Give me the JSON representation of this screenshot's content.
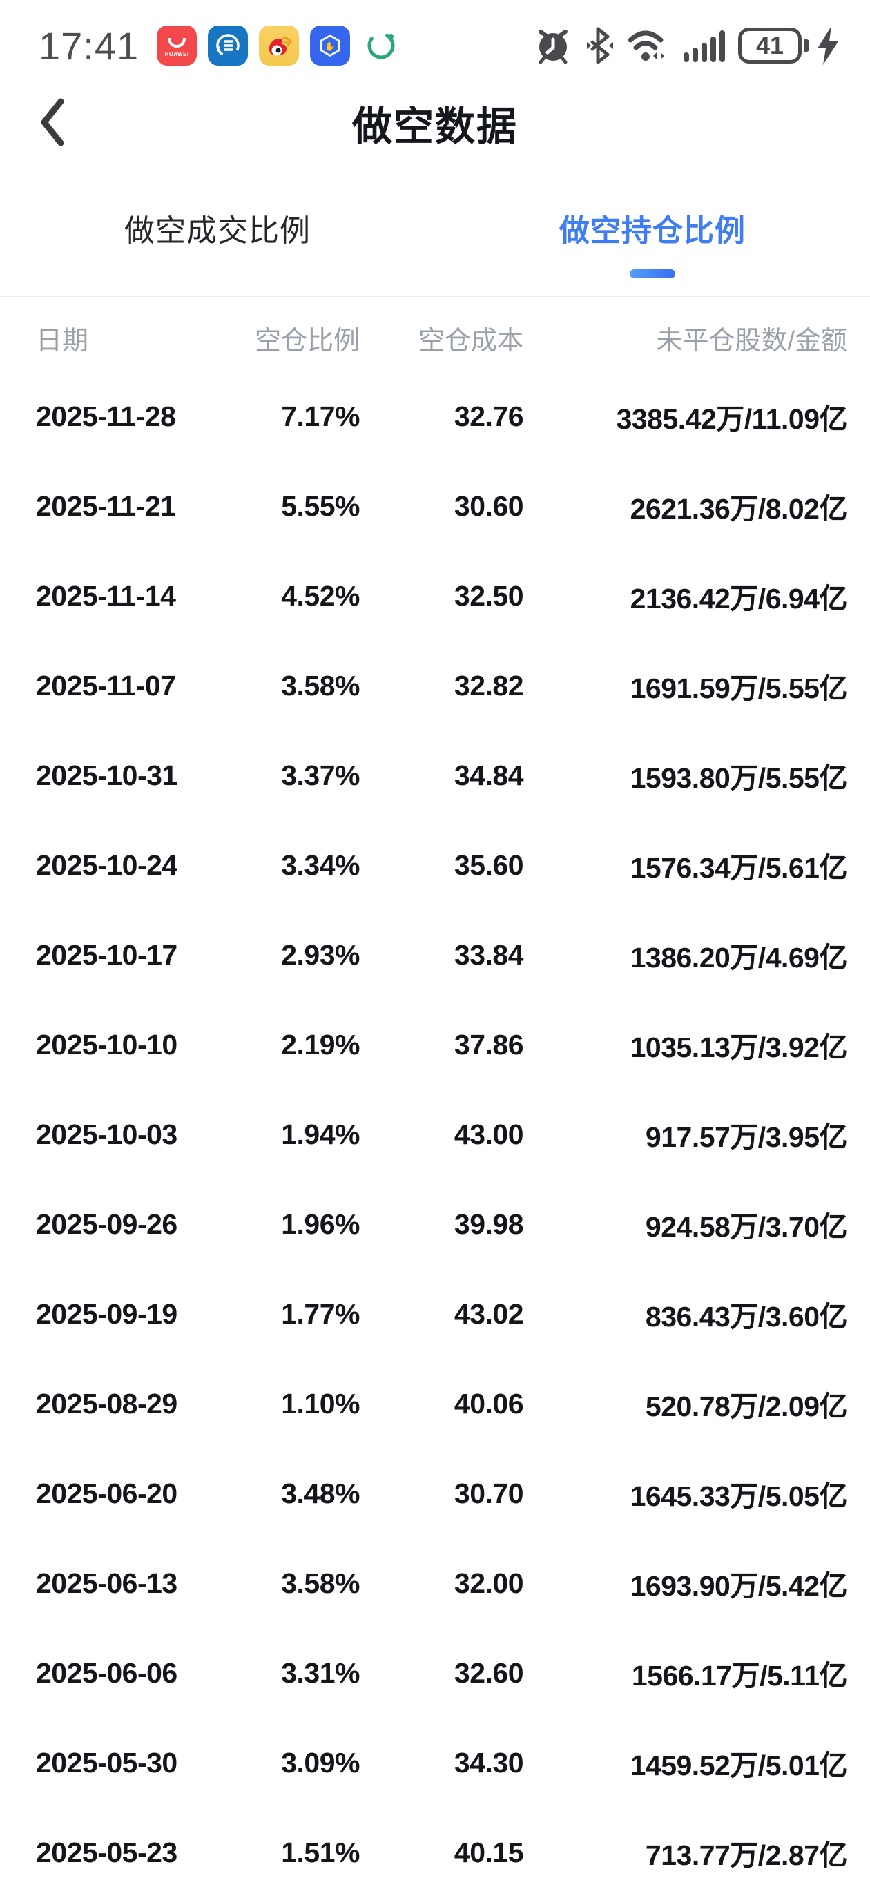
{
  "status_bar": {
    "time": "17:41",
    "battery_level": "41",
    "app_icon_names": [
      "huawei-appgallery",
      "reader-sync-app",
      "weibo",
      "hand-hexagon-app",
      "sync-indicator"
    ],
    "right_icon_names": [
      "alarm",
      "bluetooth",
      "wifi",
      "signal",
      "battery-charging"
    ],
    "huawei_label": "HUAWEI"
  },
  "header": {
    "title": "做空数据"
  },
  "tabs": [
    {
      "label": "做空成交比例",
      "active": false
    },
    {
      "label": "做空持仓比例",
      "active": true
    }
  ],
  "colors": {
    "accent_blue": "#3f7ef2",
    "tab_underline_gradient": [
      "#54a0f8",
      "#3a6cf0"
    ],
    "header_text": "#9aa0aa",
    "row_text": "#14161c",
    "status_icon": "#4a4a4e"
  },
  "table": {
    "columns": [
      "日期",
      "空仓比例",
      "空仓成本",
      "未平仓股数/金额"
    ],
    "rows": [
      [
        "2025-11-28",
        "7.17%",
        "32.76",
        "3385.42万/11.09亿"
      ],
      [
        "2025-11-21",
        "5.55%",
        "30.60",
        "2621.36万/8.02亿"
      ],
      [
        "2025-11-14",
        "4.52%",
        "32.50",
        "2136.42万/6.94亿"
      ],
      [
        "2025-11-07",
        "3.58%",
        "32.82",
        "1691.59万/5.55亿"
      ],
      [
        "2025-10-31",
        "3.37%",
        "34.84",
        "1593.80万/5.55亿"
      ],
      [
        "2025-10-24",
        "3.34%",
        "35.60",
        "1576.34万/5.61亿"
      ],
      [
        "2025-10-17",
        "2.93%",
        "33.84",
        "1386.20万/4.69亿"
      ],
      [
        "2025-10-10",
        "2.19%",
        "37.86",
        "1035.13万/3.92亿"
      ],
      [
        "2025-10-03",
        "1.94%",
        "43.00",
        "917.57万/3.95亿"
      ],
      [
        "2025-09-26",
        "1.96%",
        "39.98",
        "924.58万/3.70亿"
      ],
      [
        "2025-09-19",
        "1.77%",
        "43.02",
        "836.43万/3.60亿"
      ],
      [
        "2025-08-29",
        "1.10%",
        "40.06",
        "520.78万/2.09亿"
      ],
      [
        "2025-06-20",
        "3.48%",
        "30.70",
        "1645.33万/5.05亿"
      ],
      [
        "2025-06-13",
        "3.58%",
        "32.00",
        "1693.90万/5.42亿"
      ],
      [
        "2025-06-06",
        "3.31%",
        "32.60",
        "1566.17万/5.11亿"
      ],
      [
        "2025-05-30",
        "3.09%",
        "34.30",
        "1459.52万/5.01亿"
      ],
      [
        "2025-05-23",
        "1.51%",
        "40.15",
        "713.77万/2.87亿"
      ]
    ]
  }
}
